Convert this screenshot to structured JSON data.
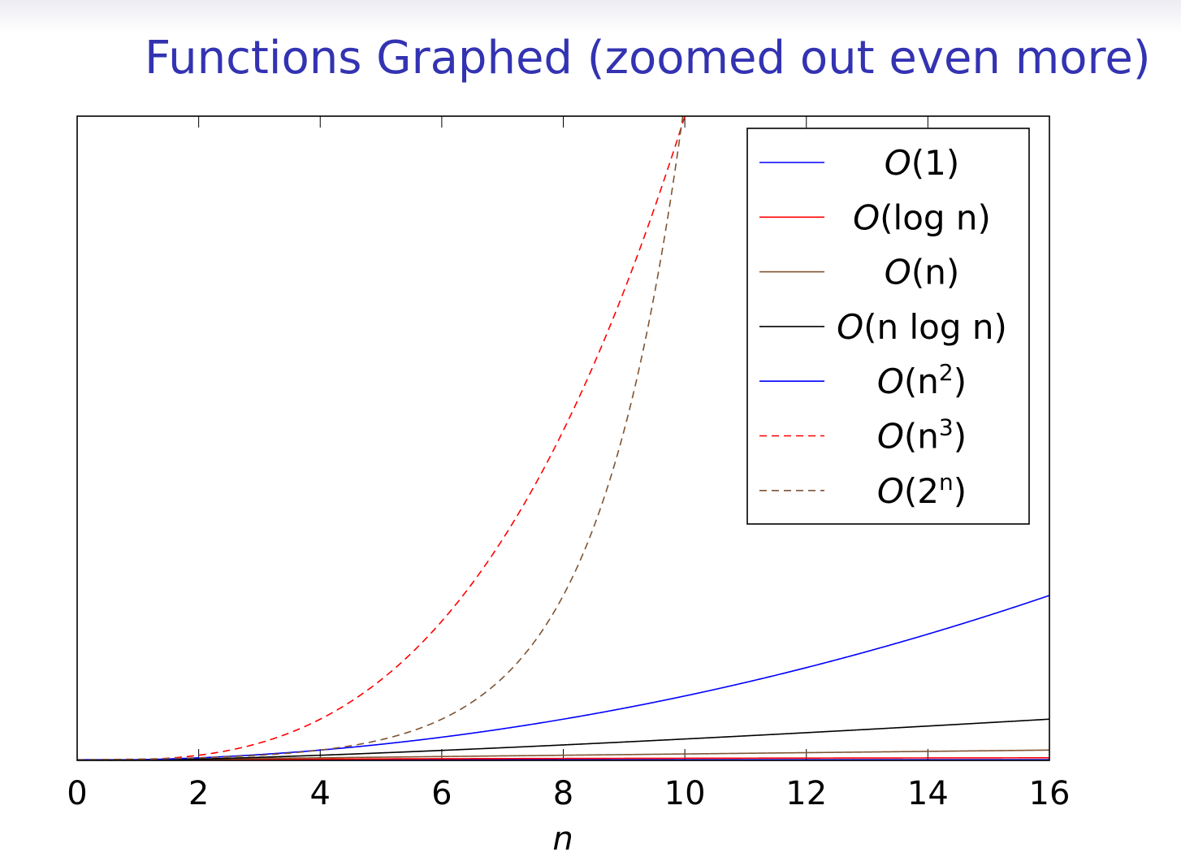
{
  "title": "Functions Graphed (zoomed out even more)",
  "colors": {
    "title": "#3333b2",
    "blue": "#0000ff",
    "red": "#ff0000",
    "brown": "#7f5433",
    "black": "#000000"
  },
  "chart_data": {
    "type": "line",
    "title": "",
    "xlabel": "n",
    "ylabel": "",
    "xlim": [
      0,
      16
    ],
    "ylim": [
      0,
      1000
    ],
    "xticks": [
      "0",
      "2",
      "4",
      "6",
      "8",
      "10",
      "12",
      "14",
      "16"
    ],
    "grid": false,
    "legend_position": "top-right",
    "series": [
      {
        "name": "O(1)",
        "label_main": "O",
        "label_inner": "1",
        "label_sup": "",
        "func": "const1",
        "color": "#0000ff",
        "dashed": false
      },
      {
        "name": "O(log n)",
        "label_main": "O",
        "label_inner": "log n",
        "label_sup": "",
        "func": "logn",
        "color": "#ff0000",
        "dashed": false
      },
      {
        "name": "O(n)",
        "label_main": "O",
        "label_inner": "n",
        "label_sup": "",
        "func": "n",
        "color": "#7f5433",
        "dashed": false
      },
      {
        "name": "O(n log n)",
        "label_main": "O",
        "label_inner": "n log n",
        "label_sup": "",
        "func": "nlogn",
        "color": "#000000",
        "dashed": false
      },
      {
        "name": "O(n2)",
        "label_main": "O",
        "label_inner": "n",
        "label_sup": "2",
        "func": "n2",
        "color": "#0000ff",
        "dashed": false
      },
      {
        "name": "O(n3)",
        "label_main": "O",
        "label_inner": "n",
        "label_sup": "3",
        "func": "n3",
        "color": "#ff0000",
        "dashed": true
      },
      {
        "name": "O(2n)",
        "label_main": "O",
        "label_inner": "2",
        "label_sup": "n",
        "func": "exp2",
        "color": "#7f5433",
        "dashed": true
      }
    ]
  }
}
